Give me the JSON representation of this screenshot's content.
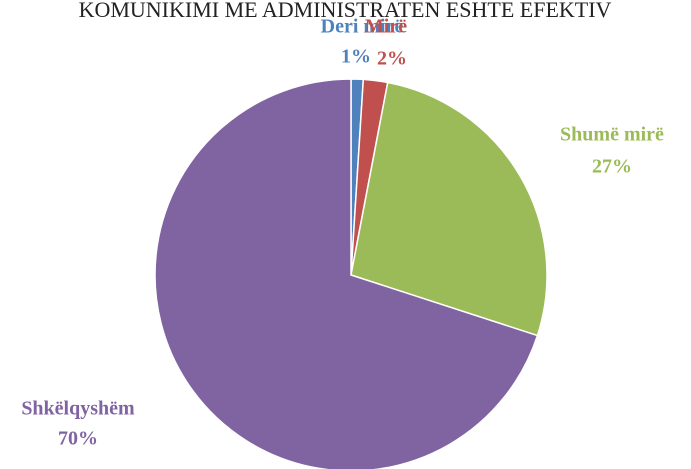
{
  "chart_data": {
    "type": "pie",
    "title": "KOMUNIKIMI ME ADMINISTRATEN ESHTE EFEKTIV",
    "categories": [
      "Deri mirë",
      "Mirë",
      "Shumë mirë",
      "Shkëlqyshëm"
    ],
    "values": [
      1,
      2,
      27,
      70
    ],
    "value_labels": [
      "1%",
      "2%",
      "27%",
      "70%"
    ],
    "colors": [
      "#4f81bd",
      "#c0504d",
      "#9bbb59",
      "#8064a2"
    ]
  }
}
